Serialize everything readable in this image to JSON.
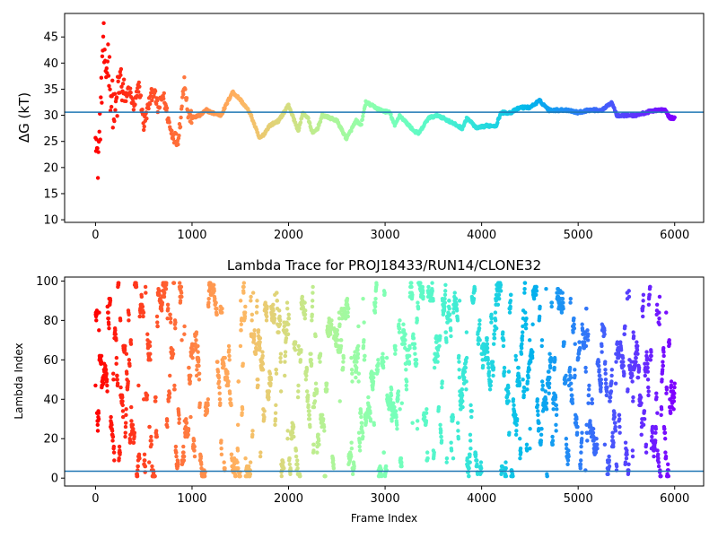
{
  "chart_data": [
    {
      "type": "scatter",
      "title": "",
      "xlabel": "",
      "ylabel": "ΔG (kT)",
      "xlim": [
        -320,
        6300
      ],
      "ylim": [
        9.5,
        49.5
      ],
      "xticks": [
        0,
        1000,
        2000,
        3000,
        4000,
        5000,
        6000
      ],
      "yticks": [
        10,
        15,
        20,
        25,
        30,
        35,
        40,
        45
      ],
      "hline": 30.6,
      "hline_color": "#1f77b4",
      "colormap": "rainbow (red at frame 0 → violet at frame 6000)",
      "n_frames": 6000,
      "trace_anchors": [
        [
          0,
          30
        ],
        [
          20,
          20
        ],
        [
          40,
          26
        ],
        [
          60,
          33
        ],
        [
          80,
          46
        ],
        [
          100,
          36
        ],
        [
          130,
          42
        ],
        [
          160,
          34
        ],
        [
          200,
          30
        ],
        [
          260,
          37
        ],
        [
          300,
          33
        ],
        [
          350,
          35
        ],
        [
          400,
          31
        ],
        [
          450,
          36
        ],
        [
          500,
          28
        ],
        [
          550,
          32
        ],
        [
          600,
          35
        ],
        [
          650,
          31
        ],
        [
          700,
          34
        ],
        [
          780,
          27
        ],
        [
          850,
          25
        ],
        [
          880,
          29
        ],
        [
          920,
          37
        ],
        [
          960,
          30
        ],
        [
          1000,
          29.5
        ],
        [
          1080,
          30
        ],
        [
          1150,
          31
        ],
        [
          1200,
          30.5
        ],
        [
          1300,
          30
        ],
        [
          1380,
          33
        ],
        [
          1420,
          34.5
        ],
        [
          1500,
          33
        ],
        [
          1600,
          30.5
        ],
        [
          1700,
          25.5
        ],
        [
          1750,
          26.5
        ],
        [
          1800,
          28
        ],
        [
          1900,
          29
        ],
        [
          2000,
          32
        ],
        [
          2050,
          29.5
        ],
        [
          2100,
          27
        ],
        [
          2150,
          30.5
        ],
        [
          2200,
          29.5
        ],
        [
          2250,
          26.5
        ],
        [
          2300,
          27.5
        ],
        [
          2350,
          30
        ],
        [
          2500,
          29
        ],
        [
          2600,
          25.5
        ],
        [
          2700,
          29
        ],
        [
          2750,
          28
        ],
        [
          2800,
          32.5
        ],
        [
          2850,
          32
        ],
        [
          2950,
          31
        ],
        [
          3050,
          30.5
        ],
        [
          3100,
          28
        ],
        [
          3150,
          30
        ],
        [
          3200,
          29
        ],
        [
          3300,
          27
        ],
        [
          3350,
          26.5
        ],
        [
          3450,
          29.5
        ],
        [
          3550,
          30
        ],
        [
          3650,
          29
        ],
        [
          3700,
          28.5
        ],
        [
          3800,
          27.5
        ],
        [
          3850,
          29.5
        ],
        [
          3950,
          27.5
        ],
        [
          4050,
          28
        ],
        [
          4150,
          28
        ],
        [
          4200,
          30.5
        ],
        [
          4300,
          30.5
        ],
        [
          4400,
          31.5
        ],
        [
          4500,
          31.5
        ],
        [
          4600,
          32.8
        ],
        [
          4700,
          31
        ],
        [
          4900,
          31
        ],
        [
          5000,
          30.5
        ],
        [
          5100,
          31
        ],
        [
          5250,
          31
        ],
        [
          5350,
          32.5
        ],
        [
          5400,
          30
        ],
        [
          5600,
          30
        ],
        [
          5700,
          30.5
        ],
        [
          5800,
          31
        ],
        [
          5900,
          31
        ],
        [
          5950,
          29.5
        ],
        [
          6000,
          29.5
        ]
      ]
    },
    {
      "type": "scatter",
      "title": "Lambda Trace for PROJ18433/RUN14/CLONE32",
      "xlabel": "Frame Index",
      "ylabel": "Lambda Index",
      "xlim": [
        -320,
        6300
      ],
      "ylim": [
        -4,
        102
      ],
      "xticks": [
        0,
        1000,
        2000,
        3000,
        4000,
        5000,
        6000
      ],
      "yticks": [
        0,
        20,
        40,
        60,
        80,
        100
      ],
      "hline": 3.5,
      "hline_color": "#1f77b4",
      "colormap": "rainbow (red at frame 0 → violet at frame 6000)",
      "n_frames": 6000,
      "lambda_range": [
        1,
        99
      ]
    }
  ]
}
